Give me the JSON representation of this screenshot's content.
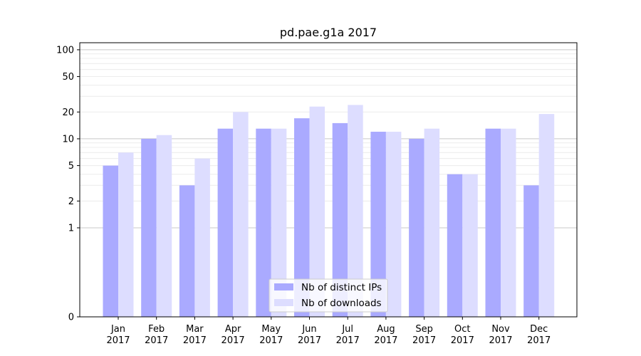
{
  "chart_data": {
    "type": "bar",
    "title": "pd.pae.g1a 2017",
    "xlabel": "",
    "ylabel": "",
    "scale": "symlog",
    "ylim": [
      0,
      120
    ],
    "yticks": [
      {
        "value": 0,
        "label": "0"
      },
      {
        "value": 1,
        "label": "1"
      },
      {
        "value": 2,
        "label": "2"
      },
      {
        "value": 5,
        "label": "5"
      },
      {
        "value": 10,
        "label": "10"
      },
      {
        "value": 20,
        "label": "20"
      },
      {
        "value": 50,
        "label": "50"
      },
      {
        "value": 100,
        "label": "100"
      }
    ],
    "categories": [
      {
        "month": "Jan",
        "year": "2017"
      },
      {
        "month": "Feb",
        "year": "2017"
      },
      {
        "month": "Mar",
        "year": "2017"
      },
      {
        "month": "Apr",
        "year": "2017"
      },
      {
        "month": "May",
        "year": "2017"
      },
      {
        "month": "Jun",
        "year": "2017"
      },
      {
        "month": "Jul",
        "year": "2017"
      },
      {
        "month": "Aug",
        "year": "2017"
      },
      {
        "month": "Sep",
        "year": "2017"
      },
      {
        "month": "Oct",
        "year": "2017"
      },
      {
        "month": "Nov",
        "year": "2017"
      },
      {
        "month": "Dec",
        "year": "2017"
      }
    ],
    "series": [
      {
        "name": "Nb of distinct IPs",
        "color": "#aaaaff",
        "values": [
          5,
          10,
          3,
          13,
          13,
          17,
          15,
          12,
          10,
          4,
          13,
          3
        ]
      },
      {
        "name": "Nb of downloads",
        "color": "#ddddff",
        "values": [
          7,
          11,
          6,
          20,
          13,
          23,
          24,
          12,
          13,
          4,
          13,
          19
        ]
      }
    ],
    "grid": true,
    "legend_position": "lower-center"
  }
}
